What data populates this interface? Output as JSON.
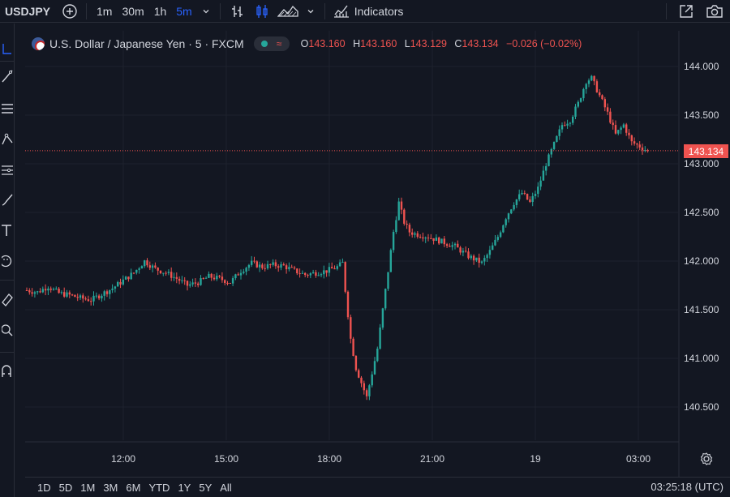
{
  "toolbar": {
    "symbol": "USDJPY",
    "timeframes": [
      "1m",
      "30m",
      "1h",
      "5m"
    ],
    "active_timeframe": "5m",
    "indicators_label": "Indicators",
    "icons": [
      "add-symbol-icon",
      "chevron-down-icon",
      "bar-chart-icon",
      "candles-icon",
      "area-chart-icon",
      "indicators-icon",
      "fullscreen-icon",
      "camera-icon"
    ]
  },
  "left_tools": [
    "crosshair-icon",
    "trend-line-icon",
    "fib-icon",
    "patterns-icon",
    "prediction-icon",
    "brush-icon",
    "text-icon",
    "emoji-icon",
    "ruler-icon",
    "zoom-icon",
    "magnet-icon"
  ],
  "legend": {
    "title": "U.S. Dollar / Japanese Yen · 5 · FXCM",
    "o_key": "O",
    "o_val": "143.160",
    "h_key": "H",
    "h_val": "143.160",
    "l_key": "L",
    "l_val": "143.129",
    "c_key": "C",
    "c_val": "143.134",
    "change": "−0.026 (−0.02%)"
  },
  "price_tag": "143.134",
  "bottom": {
    "ranges": [
      "1D",
      "5D",
      "1M",
      "3M",
      "6M",
      "YTD",
      "1Y",
      "5Y",
      "All"
    ],
    "clock": "03:25:18 (UTC)"
  },
  "colors": {
    "up": "#26a69a",
    "down": "#ef5350",
    "bg": "#131722",
    "grid": "#1e222d",
    "text": "#d1d4dc",
    "accent": "#2962ff"
  },
  "chart_data": {
    "type": "candlestick",
    "symbol": "USDJPY",
    "interval": "5",
    "y_ticks": [
      144.0,
      143.5,
      143.0,
      142.5,
      142.0,
      141.5,
      141.0,
      140.5
    ],
    "y_tick_labels": [
      "144.000",
      "143.500",
      "143.000",
      "142.500",
      "142.000",
      "141.500",
      "141.000",
      "140.500"
    ],
    "ylim": [
      140.2,
      144.25
    ],
    "x_tick_labels": [
      "12:00",
      "15:00",
      "18:00",
      "21:00",
      "19",
      "03:00"
    ],
    "last_price": 143.134,
    "close_path": [
      [
        0,
        141.7
      ],
      [
        4,
        141.68
      ],
      [
        8,
        141.74
      ],
      [
        12,
        141.67
      ],
      [
        16,
        141.65
      ],
      [
        20,
        141.62
      ],
      [
        24,
        141.6
      ],
      [
        28,
        141.66
      ],
      [
        32,
        141.72
      ],
      [
        36,
        141.8
      ],
      [
        40,
        141.88
      ],
      [
        44,
        142.0
      ],
      [
        48,
        141.92
      ],
      [
        52,
        141.88
      ],
      [
        56,
        141.82
      ],
      [
        60,
        141.75
      ],
      [
        64,
        141.78
      ],
      [
        68,
        141.84
      ],
      [
        72,
        141.82
      ],
      [
        76,
        141.78
      ],
      [
        80,
        141.9
      ],
      [
        84,
        141.98
      ],
      [
        88,
        141.94
      ],
      [
        92,
        141.96
      ],
      [
        96,
        141.95
      ],
      [
        100,
        141.9
      ],
      [
        104,
        141.86
      ],
      [
        108,
        141.88
      ],
      [
        112,
        141.9
      ],
      [
        116,
        141.94
      ],
      [
        118,
        141.98
      ],
      [
        119,
        141.7
      ],
      [
        121,
        141.2
      ],
      [
        123,
        140.9
      ],
      [
        125,
        140.75
      ],
      [
        127,
        140.6
      ],
      [
        129,
        140.85
      ],
      [
        131,
        141.1
      ],
      [
        133,
        141.5
      ],
      [
        135,
        141.9
      ],
      [
        137,
        142.3
      ],
      [
        139,
        142.6
      ],
      [
        141,
        142.4
      ],
      [
        143,
        142.3
      ],
      [
        145,
        142.28
      ],
      [
        150,
        142.25
      ],
      [
        155,
        142.2
      ],
      [
        160,
        142.15
      ],
      [
        165,
        142.05
      ],
      [
        170,
        141.98
      ],
      [
        173,
        142.1
      ],
      [
        176,
        142.25
      ],
      [
        179,
        142.45
      ],
      [
        182,
        142.6
      ],
      [
        185,
        142.7
      ],
      [
        188,
        142.6
      ],
      [
        191,
        142.75
      ],
      [
        194,
        143.0
      ],
      [
        197,
        143.2
      ],
      [
        200,
        143.4
      ],
      [
        203,
        143.45
      ],
      [
        206,
        143.62
      ],
      [
        209,
        143.85
      ],
      [
        211,
        143.88
      ],
      [
        214,
        143.7
      ],
      [
        217,
        143.52
      ],
      [
        220,
        143.3
      ],
      [
        223,
        143.4
      ],
      [
        226,
        143.22
      ],
      [
        229,
        143.18
      ],
      [
        232,
        143.13
      ]
    ]
  }
}
